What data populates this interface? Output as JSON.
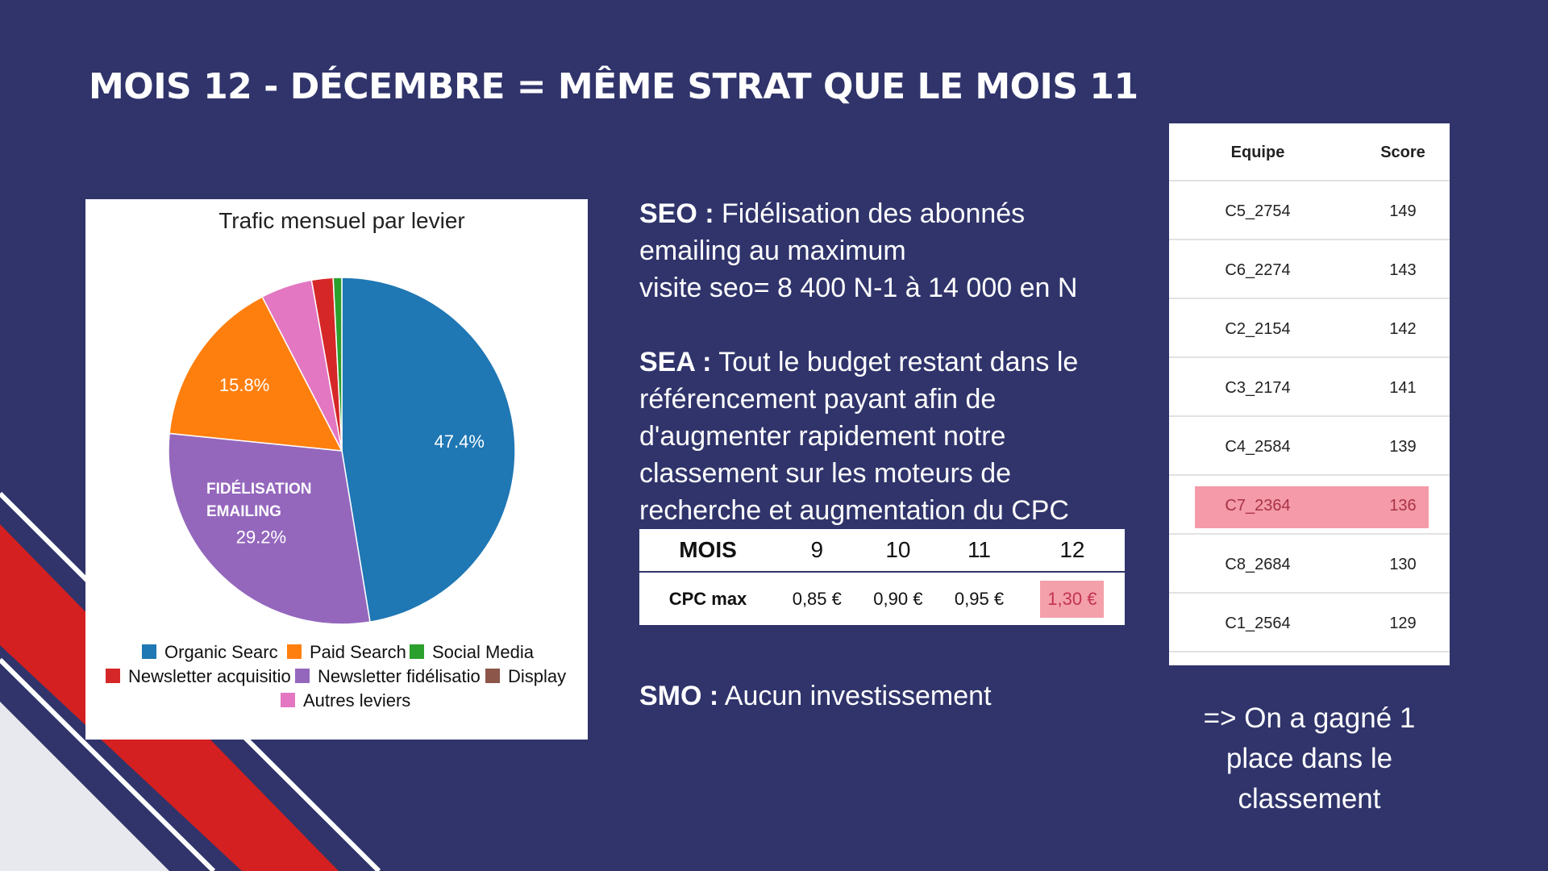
{
  "slide": {
    "title": "MOIS 12 - DÉCEMBRE = MÊME STRAT QUE LE MOIS 11"
  },
  "chart_data": {
    "type": "pie",
    "title": "Trafic mensuel par levier",
    "slices": [
      {
        "name": "Organic Search",
        "value": 47.4,
        "color": "#1f77b4",
        "label": "47.4%"
      },
      {
        "name": "Newsletter fidélisation",
        "value": 29.2,
        "color": "#9467bd",
        "label": "29.2%"
      },
      {
        "name": "Paid Search",
        "value": 15.8,
        "color": "#ff7f0e",
        "label": "15.8%"
      },
      {
        "name": "Autres leviers",
        "value": 4.8,
        "color": "#e377c2",
        "label": ""
      },
      {
        "name": "Newsletter acquisition",
        "value": 2.0,
        "color": "#d62728",
        "label": ""
      },
      {
        "name": "Social Media",
        "value": 0.8,
        "color": "#2ca02c",
        "label": ""
      },
      {
        "name": "Display",
        "value": 0.0,
        "color": "#8c564b",
        "label": ""
      }
    ],
    "legend": [
      {
        "text": "Organic Searc",
        "color": "#1f77b4"
      },
      {
        "text": "Paid Search",
        "color": "#ff7f0e"
      },
      {
        "text": "Social Media",
        "color": "#2ca02c"
      },
      {
        "text": "Newsletter acquisitio",
        "color": "#d62728"
      },
      {
        "text": "Newsletter fidélisatio",
        "color": "#9467bd"
      },
      {
        "text": "Display",
        "color": "#8c564b"
      },
      {
        "text": "Autres leviers",
        "color": "#e377c2"
      }
    ],
    "legend_position": "bottom",
    "annotation": [
      "FIDÉLISATION",
      "EMAILING"
    ]
  },
  "seo": {
    "label": "SEO :",
    "line1": " Fidélisation des abonnés",
    "line2": "emailing au maximum",
    "line3": "visite seo= 8 400 N-1 à 14 000 en N"
  },
  "sea": {
    "label": "SEA :",
    "line1": " Tout le budget restant dans le",
    "line2": "référencement payant afin de",
    "line3": "d'augmenter rapidement notre",
    "line4": "classement sur les moteurs de",
    "line5": "recherche  et augmentation du CPC"
  },
  "cpc_table": {
    "header_label": "MOIS",
    "months": [
      "9",
      "10",
      "11",
      "12"
    ],
    "row_label": "CPC max",
    "values": [
      "0,85 €",
      "0,90 €",
      "0,95 €",
      "1,30 €"
    ]
  },
  "smo": {
    "label": "SMO :",
    "text": " Aucun investissement"
  },
  "ranking": {
    "headers": {
      "team": "Equipe",
      "score": "Score"
    },
    "rows": [
      {
        "team": "C5_2754",
        "score": "149"
      },
      {
        "team": "C6_2274",
        "score": "143"
      },
      {
        "team": "C2_2154",
        "score": "142"
      },
      {
        "team": "C3_2174",
        "score": "141"
      },
      {
        "team": "C4_2584",
        "score": "139"
      },
      {
        "team": "C7_2364",
        "score": "136"
      },
      {
        "team": "C8_2684",
        "score": "130"
      },
      {
        "team": "C1_2564",
        "score": "129"
      }
    ],
    "highlight_row": 5,
    "highlight_color": "#f49aa8"
  },
  "conclusion": {
    "line1": "=> On a gagné 1",
    "line2": "place dans le",
    "line3": "classement"
  },
  "colors": {
    "background": "#30346b",
    "accent_red": "#d42020",
    "deco_light": "#e8e9ee"
  }
}
